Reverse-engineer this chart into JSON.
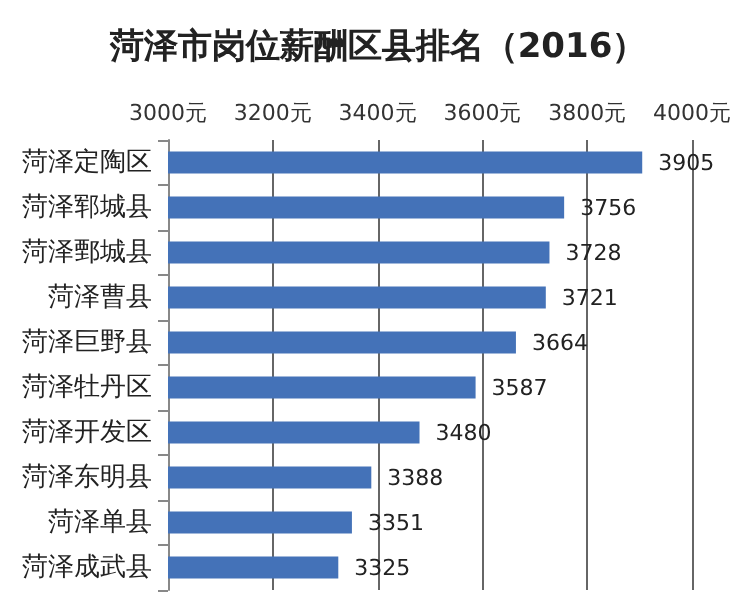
{
  "chart_data": {
    "type": "bar",
    "orientation": "horizontal",
    "title": "菏泽市岗位薪酬区县排名（2016）",
    "categories": [
      "菏泽定陶区",
      "菏泽郓城县",
      "菏泽鄄城县",
      "菏泽曹县",
      "菏泽巨野县",
      "菏泽牡丹区",
      "菏泽开发区",
      "菏泽东明县",
      "菏泽单县",
      "菏泽成武县"
    ],
    "values": [
      3905,
      3756,
      3728,
      3721,
      3664,
      3587,
      3480,
      3388,
      3351,
      3325
    ],
    "color": "#4472b8",
    "data_labels": true,
    "grid": "x",
    "xlim": [
      3000,
      4000
    ],
    "xticks": [
      {
        "value": 3000,
        "label": "3000元"
      },
      {
        "value": 3200,
        "label": "3200元"
      },
      {
        "value": 3400,
        "label": "3400元"
      },
      {
        "value": 3600,
        "label": "3600元"
      },
      {
        "value": 3800,
        "label": "3800元"
      },
      {
        "value": 4000,
        "label": "4000元"
      }
    ]
  }
}
